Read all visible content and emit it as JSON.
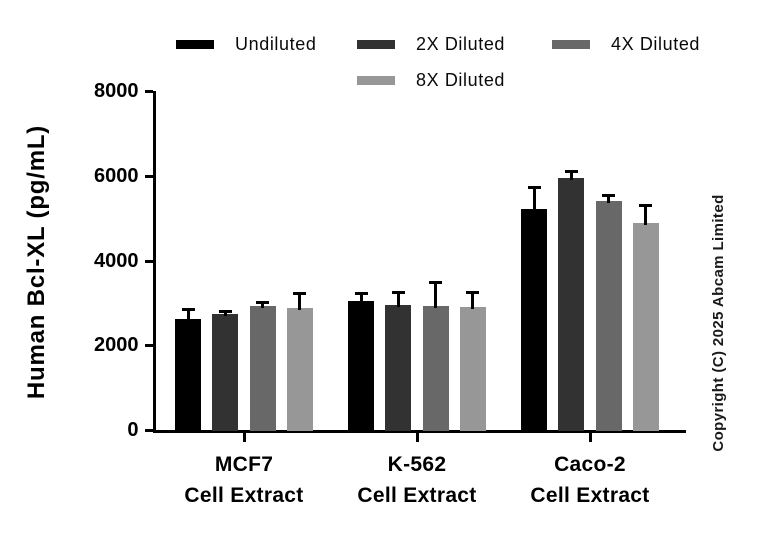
{
  "chart_data": {
    "type": "bar",
    "title": "",
    "xlabel": "",
    "ylabel": "Human Bcl-XL (pg/mL)",
    "ylim": [
      0,
      8000
    ],
    "yticks": [
      0,
      2000,
      4000,
      6000,
      8000
    ],
    "grid": false,
    "legend_position": "top",
    "categories": [
      [
        "MCF7",
        "Cell Extract"
      ],
      [
        "K-562",
        "Cell Extract"
      ],
      [
        "Caco-2",
        "Cell Extract"
      ]
    ],
    "series": [
      {
        "name": "Undiluted",
        "color": "#000000",
        "values": [
          2630,
          3050,
          5210
        ],
        "errors": [
          210,
          170,
          520
        ]
      },
      {
        "name": "2X Diluted",
        "color": "#323232",
        "values": [
          2730,
          2940,
          5950
        ],
        "errors": [
          60,
          300,
          160
        ]
      },
      {
        "name": "4X Diluted",
        "color": "#686868",
        "values": [
          2920,
          2930,
          5400
        ],
        "errors": [
          100,
          540,
          140
        ]
      },
      {
        "name": "8X Diluted",
        "color": "#979797",
        "values": [
          2890,
          2900,
          4880
        ],
        "errors": [
          330,
          350,
          410
        ]
      }
    ]
  },
  "watermark": {
    "text": "Copyright (C) 2025 Abcam Limited"
  }
}
